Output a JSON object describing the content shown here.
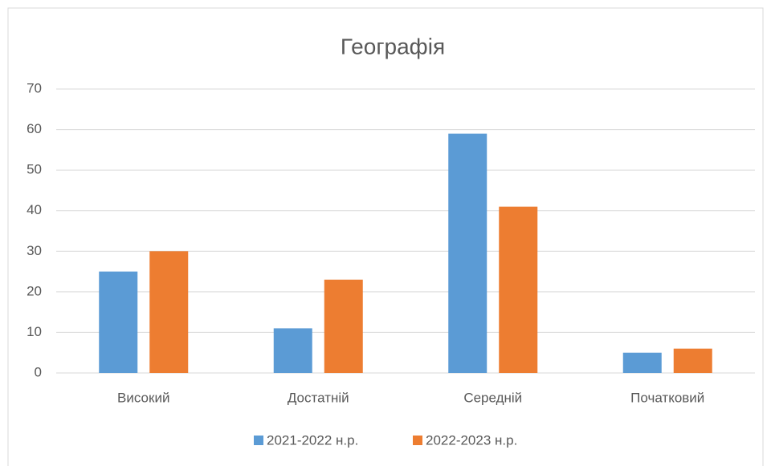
{
  "chart_data": {
    "type": "bar",
    "title": "Географія",
    "categories": [
      "Високий",
      "Достатній",
      "Середній",
      "Початковий"
    ],
    "series": [
      {
        "name": "2021-2022 н.р.",
        "color": "#5b9bd5",
        "values": [
          25,
          11,
          59,
          5
        ]
      },
      {
        "name": "2022-2023 н.р.",
        "color": "#ed7d31",
        "values": [
          30,
          23,
          41,
          6
        ]
      }
    ],
    "ylim": [
      0,
      70
    ],
    "yticks": [
      0,
      10,
      20,
      30,
      40,
      50,
      60,
      70
    ],
    "grid": true,
    "legend": "bottom"
  }
}
